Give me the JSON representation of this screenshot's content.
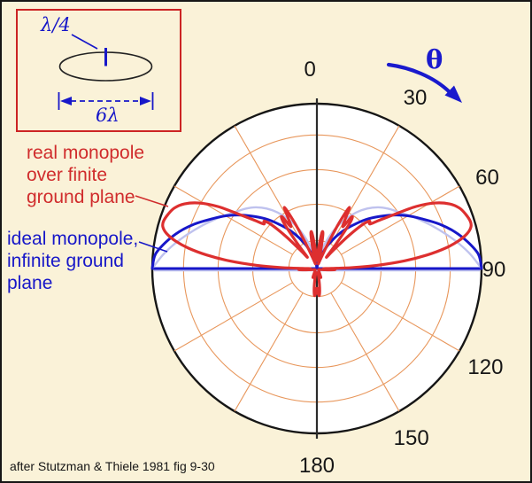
{
  "attribution": "after Stutzman & Thiele 1981 fig 9-30",
  "theta_symbol": "θ",
  "inset": {
    "element_length_label": "λ/4",
    "diameter_label": "6λ"
  },
  "legend": {
    "real_label_lines": [
      "real monopole",
      "over finite",
      "ground plane"
    ],
    "ideal_label_lines": [
      "ideal monopole,",
      "infinite ground",
      "plane"
    ]
  },
  "colors": {
    "background": "#faf2d8",
    "frame": "#161616",
    "circle_fill": "#ffffff",
    "circle_stroke": "#161616",
    "grid": "#e8975c",
    "axis": "#2b2b2b",
    "red_curve": "#dd2f2f",
    "blue_curve": "#1717c9",
    "lavender_curve": "#bfc2ee",
    "red_text": "#d02c2c",
    "blue_text": "#1717c8",
    "inset_border": "#cc2424",
    "theta_blue": "#1a1acd"
  },
  "chart_data": {
    "type": "line",
    "subtype": "polar-radiation-pattern",
    "angle_unit": "degrees from zenith, symmetric left/right",
    "symmetric_mirror": true,
    "angle_ticks": [
      {
        "label": "0",
        "angle": -2,
        "radius": 224
      },
      {
        "label": "30",
        "angle": 30,
        "radius": 222
      },
      {
        "label": "60",
        "angle": 62,
        "radius": 218
      },
      {
        "label": "90",
        "angle": 90.5,
        "radius": 200
      },
      {
        "label": "120",
        "angle": 120.5,
        "radius": 221
      },
      {
        "label": "150",
        "angle": 151,
        "radius": 220
      },
      {
        "label": "180",
        "angle": 180,
        "radius": 223
      }
    ],
    "grid": {
      "ring_fractions": [
        0.17,
        0.39,
        0.6,
        0.81
      ],
      "spoke_angles_deg": [
        30,
        60,
        120,
        150,
        210,
        240,
        300,
        330
      ],
      "spoke_inner_fraction": 0.17
    },
    "series": [
      {
        "name": "real monopole over finite ground plane",
        "color_key": "red_curve",
        "points": [
          [
            0,
            0.05
          ],
          [
            2,
            0.07
          ],
          [
            5,
            0.13
          ],
          [
            8,
            0.22
          ],
          [
            10,
            0.21
          ],
          [
            12,
            0.12
          ],
          [
            15,
            0.05
          ],
          [
            18,
            0.03
          ],
          [
            21,
            0.06
          ],
          [
            24,
            0.17
          ],
          [
            26,
            0.31
          ],
          [
            28,
            0.42
          ],
          [
            30,
            0.34
          ],
          [
            32,
            0.3
          ],
          [
            34,
            0.38
          ],
          [
            36,
            0.34
          ],
          [
            38,
            0.19
          ],
          [
            40,
            0.09
          ],
          [
            42,
            0.15
          ],
          [
            44,
            0.27
          ],
          [
            46,
            0.38
          ],
          [
            48,
            0.43
          ],
          [
            50,
            0.42
          ],
          [
            52,
            0.47
          ],
          [
            55,
            0.57
          ],
          [
            58,
            0.71
          ],
          [
            61,
            0.82
          ],
          [
            64,
            0.895
          ],
          [
            67,
            0.94
          ],
          [
            70,
            0.962
          ],
          [
            73,
            0.975
          ],
          [
            75,
            0.968
          ],
          [
            77,
            0.935
          ],
          [
            79,
            0.875
          ],
          [
            81,
            0.79
          ],
          [
            83,
            0.675
          ],
          [
            85,
            0.535
          ],
          [
            87,
            0.365
          ],
          [
            88.5,
            0.215
          ],
          [
            89.5,
            0.09
          ],
          [
            90,
            0.04
          ],
          [
            92,
            0.085
          ],
          [
            94,
            0.11
          ],
          [
            96,
            0.08
          ],
          [
            99,
            0.05
          ],
          [
            103,
            0.03
          ],
          [
            108,
            0.02
          ],
          [
            115,
            0.015
          ],
          [
            125,
            0.012
          ],
          [
            135,
            0.015
          ],
          [
            145,
            0.022
          ],
          [
            152,
            0.04
          ],
          [
            156,
            0.06
          ],
          [
            160,
            0.04
          ],
          [
            164,
            0.025
          ],
          [
            168,
            0.05
          ],
          [
            171,
            0.1
          ],
          [
            173,
            0.14
          ],
          [
            175,
            0.165
          ],
          [
            177,
            0.15
          ],
          [
            178.5,
            0.12
          ],
          [
            180,
            0.15
          ]
        ]
      },
      {
        "name": "ideal monopole, infinite ground plane",
        "color_key": "blue_curve",
        "has_equator_line": true,
        "points": [
          [
            0,
            0
          ],
          [
            5,
            0.007
          ],
          [
            10,
            0.025
          ],
          [
            15,
            0.055
          ],
          [
            20,
            0.1
          ],
          [
            25,
            0.155
          ],
          [
            30,
            0.215
          ],
          [
            35,
            0.28
          ],
          [
            40,
            0.345
          ],
          [
            45,
            0.42
          ],
          [
            50,
            0.49
          ],
          [
            55,
            0.565
          ],
          [
            60,
            0.64
          ],
          [
            65,
            0.71
          ],
          [
            70,
            0.79
          ],
          [
            75,
            0.865
          ],
          [
            80,
            0.93
          ],
          [
            85,
            0.985
          ],
          [
            90,
            1.0
          ]
        ]
      },
      {
        "name": "faint reference envelope",
        "color_key": "lavender_curve",
        "has_equator_line": true,
        "points": [
          [
            0,
            0
          ],
          [
            5,
            0.02
          ],
          [
            10,
            0.06
          ],
          [
            15,
            0.12
          ],
          [
            20,
            0.19
          ],
          [
            25,
            0.27
          ],
          [
            30,
            0.345
          ],
          [
            35,
            0.415
          ],
          [
            40,
            0.475
          ],
          [
            45,
            0.525
          ],
          [
            50,
            0.565
          ],
          [
            55,
            0.6
          ],
          [
            60,
            0.645
          ],
          [
            65,
            0.695
          ],
          [
            70,
            0.75
          ],
          [
            75,
            0.81
          ],
          [
            80,
            0.875
          ],
          [
            85,
            0.94
          ],
          [
            90,
            1.0
          ]
        ]
      }
    ]
  }
}
